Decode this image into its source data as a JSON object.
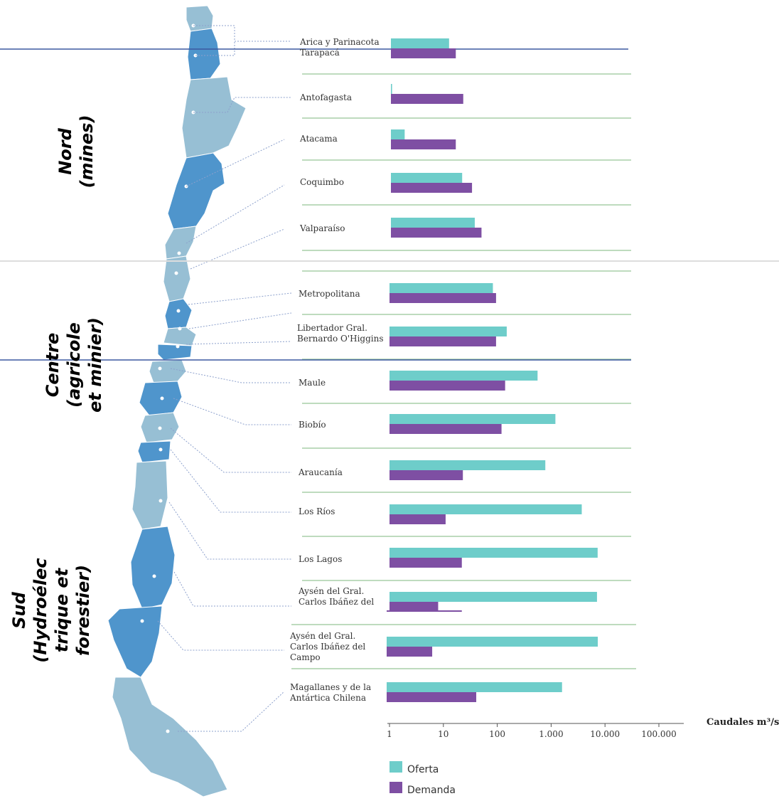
{
  "chart_data": {
    "type": "bar",
    "orientation": "horizontal",
    "x_scale": "log",
    "xlim": [
      1,
      100000
    ],
    "xticks": [
      "1",
      "10",
      "100",
      "1.000",
      "10.000",
      "100.000"
    ],
    "xtick_values": [
      1,
      10,
      100,
      1000,
      10000,
      100000
    ],
    "xlabel": "Caudales m³/s",
    "categories": [
      [
        "Arica y Parinacota",
        "Tarapacá"
      ],
      [
        "Antofagasta"
      ],
      [
        "Atacama"
      ],
      [
        "Coquimbo"
      ],
      [
        "Valparaíso"
      ],
      [
        "Metropolitana"
      ],
      [
        "Libertador Gral.",
        "Bernardo O'Higgins"
      ],
      [
        "Maule"
      ],
      [
        "Biobío"
      ],
      [
        "Araucanía"
      ],
      [
        "Los Ríos"
      ],
      [
        "Los Lagos"
      ],
      [
        "Aysén del Gral.",
        "Carlos Ibáñez del"
      ],
      [
        "Aysén del Gral.",
        "Carlos Ibáñez del",
        "Campo"
      ],
      [
        "Magallanes y de la",
        "Antártica Chilena"
      ]
    ],
    "series": [
      {
        "name": "Oferta",
        "color": "#6ecdca",
        "values": [
          12,
          1.05,
          1.8,
          21,
          36,
          83,
          150,
          560,
          1200,
          780,
          3700,
          7300,
          7100,
          8300,
          1800
        ]
      },
      {
        "name": "Demanda",
        "color": "#7e4fa3",
        "values": [
          16,
          22,
          16,
          32,
          48,
          95,
          95,
          140,
          120,
          23,
          11,
          22,
          8,
          7,
          46
        ]
      }
    ],
    "extra_marks": {
      "aysen_demanda_thin": 22
    },
    "legend_position": "bottom-left"
  },
  "annotations": {
    "zones": [
      {
        "lines": [
          "Nord",
          "(mines)"
        ]
      },
      {
        "lines": [
          "Centre",
          "(agricole",
          "et minier)"
        ]
      },
      {
        "lines": [
          "Sud",
          "(Hydroélec",
          "trique et",
          "forestier)"
        ]
      }
    ]
  },
  "colors": {
    "map_dark": "#4f95cc",
    "map_light": "#97bfd4",
    "separator": "#a8cfa8",
    "blue_line": "#3b58a0",
    "leader": "#8ca0cc"
  }
}
